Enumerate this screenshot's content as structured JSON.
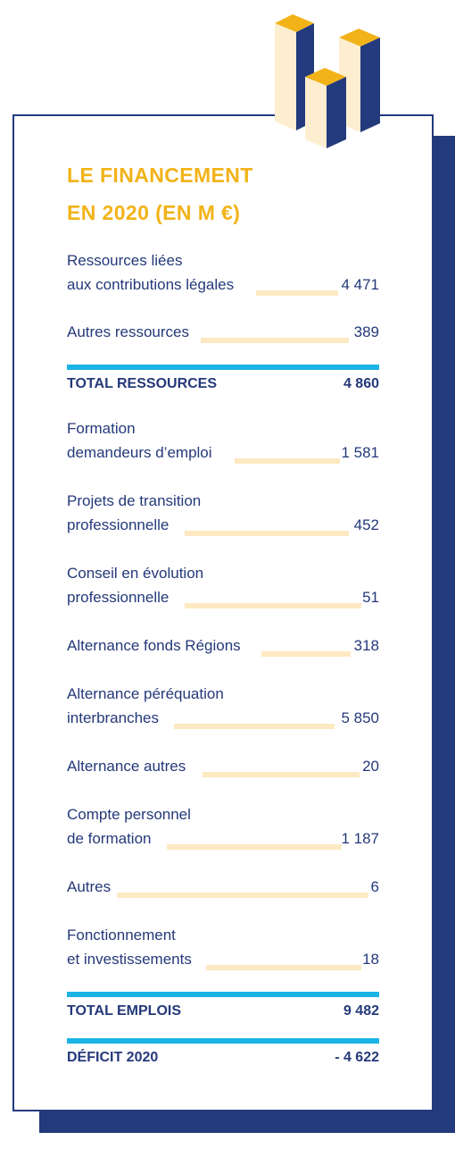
{
  "title": [
    "LE FINANCEMENT",
    "EN 2020 (EN M €)"
  ],
  "resources": [
    {
      "label_lines": [
        "Ressources liées",
        "aux contributions légales"
      ],
      "value": "4 471"
    },
    {
      "label_lines": [
        "Autres ressources"
      ],
      "value": "389"
    }
  ],
  "total_resources": {
    "label": "TOTAL RESSOURCES",
    "value": "4 860"
  },
  "uses": [
    {
      "label_lines": [
        "Formation",
        "demandeurs d’emploi"
      ],
      "value": "1 581"
    },
    {
      "label_lines": [
        "Projets de transition",
        "professionnelle"
      ],
      "value": "452"
    },
    {
      "label_lines": [
        "Conseil en évolution",
        "professionnelle"
      ],
      "value": "51"
    },
    {
      "label_lines": [
        "Alternance fonds Régions"
      ],
      "value": "318"
    },
    {
      "label_lines": [
        "Alternance péréquation",
        "interbranches"
      ],
      "value": "5 850"
    },
    {
      "label_lines": [
        "Alternance autres"
      ],
      "value": "20"
    },
    {
      "label_lines": [
        "Compte personnel",
        "de formation"
      ],
      "value": "1 187"
    },
    {
      "label_lines": [
        "Autres"
      ],
      "value": "6"
    },
    {
      "label_lines": [
        "Fonctionnement",
        "et investissements"
      ],
      "value": "18"
    }
  ],
  "total_uses": {
    "label": "TOTAL EMPLOIS",
    "value": "9 482"
  },
  "deficit": {
    "label": "DÉFICIT 2020",
    "value": "- 4 622"
  },
  "colors": {
    "navy": "#233a7d",
    "gold": "#f2b319",
    "leader": "#fde9c2",
    "rule": "#1ab3e6",
    "cream": "#fdeed0"
  }
}
